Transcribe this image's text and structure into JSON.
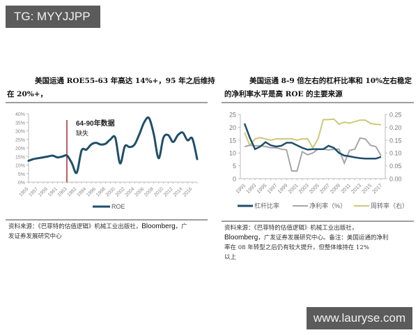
{
  "badges": {
    "top": "TG: MYYJJPP",
    "bottom": "www.lauryse.com"
  },
  "left_panel": {
    "title_line1": "美国运通 ROE55-63 年高达 14%+，95 年之后维持",
    "title_line2": "在 20%+，",
    "annotation_line1": "64-90年数据",
    "annotation_line2": "缺失",
    "legend": "ROE",
    "source_line1": "资料来源：《巴菲特的估值逻辑》机械工业出版社，",
    "source_brand": "Bloomberg",
    "source_line1_tail": "，广",
    "source_line2": "发证券发展研究中心"
  },
  "right_panel": {
    "title_line1": "美国运通 8-9 倍左右的杠杆比率和 10%左右稳定",
    "title_line2": "的净利率水平是高 ROE 的主要来源",
    "legend": [
      "杠杆比率",
      "净利率（%）",
      "周转率（右）"
    ],
    "source_line1": "资料来源：《巴菲特的估值逻辑》机械工业出版社，",
    "source_brand": "Bloomberg",
    "source_line2_tail": "，广发证券发展研究中心。备注：美国运通的净利",
    "source_line3": "率在 08 年转型之后仍有较大提升，但整体维持在 12%",
    "source_line4": "以上"
  },
  "chart_data": [
    {
      "type": "line",
      "title": "美国运通 ROE55-63 年高达 14%+，95 年之后维持在 20%+",
      "xlabel": "",
      "ylabel": "",
      "ylim": [
        0,
        40
      ],
      "yticks": [
        "0%",
        "5%",
        "10%",
        "15%",
        "20%",
        "25%",
        "30%",
        "35%",
        "40%"
      ],
      "xticks": [
        "1955",
        "1957",
        "1959",
        "1961",
        "1963",
        "1992",
        "1994",
        "1996",
        "1998",
        "2000",
        "2002",
        "2004",
        "2006",
        "2008",
        "2010",
        "2012",
        "2014",
        "2016"
      ],
      "grid": false,
      "legend_position": "bottom",
      "annotation": {
        "text": "64-90年数据缺失",
        "at": "1963",
        "color": "#a52a2a"
      },
      "series": [
        {
          "name": "ROE",
          "color": "#1f4e6b",
          "x": [
            "1955",
            "1956",
            "1957",
            "1958",
            "1959",
            "1960",
            "1961",
            "1962",
            "1963",
            "1991",
            "1992",
            "1993",
            "1994",
            "1995",
            "1996",
            "1997",
            "1998",
            "1999",
            "2000",
            "2001",
            "2002",
            "2003",
            "2004",
            "2005",
            "2006",
            "2007",
            "2008",
            "2009",
            "2010",
            "2011",
            "2012",
            "2013",
            "2014",
            "2015",
            "2016",
            "2017"
          ],
          "values": [
            12.5,
            13.5,
            14,
            14.5,
            15,
            15.5,
            14.5,
            15,
            15.5,
            11,
            5.5,
            18.5,
            19,
            22,
            23,
            22,
            22.5,
            25,
            26,
            11,
            21,
            20.5,
            22,
            28,
            35,
            37.5,
            28,
            14,
            26,
            27.5,
            23.5,
            27.5,
            29,
            24.5,
            25.5,
            13.5
          ]
        }
      ]
    },
    {
      "type": "line",
      "title": "美国运通 8-9 倍左右的杠杆比率和 10%左右稳定的净利率水平是高 ROE 的主要来源",
      "xlabel": "",
      "ylabel": "",
      "ylim": [
        0,
        25
      ],
      "ylim_right": [
        0,
        0.25
      ],
      "yticks": [
        "0",
        "5",
        "10",
        "15",
        "20",
        "25"
      ],
      "yticks_right": [
        "0.00",
        "0.05",
        "0.10",
        "0.15",
        "0.20",
        "0.25"
      ],
      "xticks": [
        "1991",
        "1993",
        "1995",
        "1997",
        "1999",
        "2001",
        "2003",
        "2005",
        "2007",
        "2009",
        "2011",
        "2013",
        "2015",
        "2017"
      ],
      "grid": false,
      "legend_position": "bottom",
      "x": [
        1991,
        1992,
        1993,
        1994,
        1995,
        1996,
        1997,
        1998,
        1999,
        2000,
        2001,
        2002,
        2003,
        2004,
        2005,
        2006,
        2007,
        2008,
        2009,
        2010,
        2011,
        2012,
        2013,
        2014,
        2015,
        2016,
        2017
      ],
      "series": [
        {
          "name": "杠杆比率",
          "axis": "left",
          "color": "#1f4e6b",
          "values": [
            21.5,
            16,
            11.5,
            12.5,
            14.2,
            13,
            12.5,
            12.8,
            14,
            14,
            13,
            12,
            11.3,
            11.5,
            11.5,
            11.5,
            12.8,
            12,
            10,
            9,
            8.7,
            8.3,
            8,
            7.8,
            7.8,
            7.8,
            8.5
          ]
        },
        {
          "name": "净利率（%）",
          "axis": "left",
          "color": "#a6a6a6",
          "values": [
            12.5,
            13,
            12.8,
            12.8,
            12.5,
            12,
            12,
            11.5,
            11.2,
            3,
            3,
            10.5,
            9.3,
            10,
            11.5,
            11.5,
            11.2,
            11.5,
            11.5,
            6,
            11,
            11.5,
            15.8,
            15.5,
            13,
            12.5,
            9
          ]
        },
        {
          "name": "周转率（右）",
          "axis": "right",
          "color": "#cfc77a",
          "values": [
            0.18,
            0.13,
            0.155,
            0.16,
            0.155,
            0.15,
            0.155,
            0.155,
            0.155,
            0.155,
            0.15,
            0.155,
            0.155,
            0.12,
            0.155,
            0.23,
            0.23,
            0.232,
            0.212,
            0.22,
            0.216,
            0.222,
            0.228,
            0.228,
            0.215,
            0.212,
            0.21
          ]
        }
      ]
    }
  ]
}
